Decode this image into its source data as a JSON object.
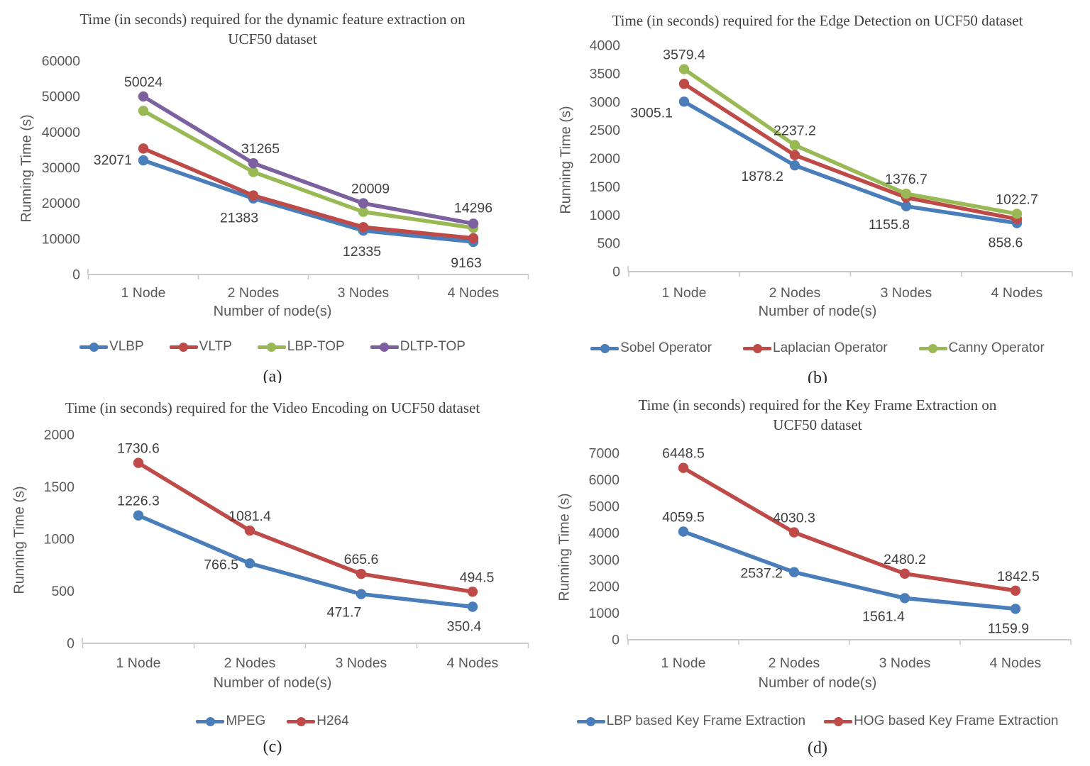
{
  "palette": {
    "blue": "#4A7EBB",
    "red": "#BE4B48",
    "green": "#98B954",
    "purple": "#7D60A0"
  },
  "style_colors": {
    "tick_text": "#595959",
    "data_label_text": "#404040",
    "title_text": "#3F3F3F",
    "axis_line": "#C9C9C9"
  },
  "chart_data": [
    {
      "type": "line",
      "title": "Time (in seconds) required for the dynamic feature extraction on UCF50 dataset",
      "ylabel": "Running Time (s)",
      "xlabel": "Number of node(s)",
      "caption": "(a)",
      "categories": [
        "1 Node",
        "2 Nodes",
        "3 Nodes",
        "4 Nodes"
      ],
      "ylim": [
        0,
        60000
      ],
      "ytick_step": 10000,
      "grid": false,
      "legend_position": "bottom",
      "series": [
        {
          "name": "VLBP",
          "color_key": "blue",
          "values": [
            32071,
            21383,
            12335,
            9163
          ],
          "labels": [
            "32071",
            "21383",
            "12335",
            "9163"
          ],
          "label_offsets": [
            [
              -16,
              0,
              "end"
            ],
            [
              -20,
              28,
              "middle"
            ],
            [
              -2,
              30,
              "middle"
            ],
            [
              -10,
              30,
              "middle"
            ]
          ]
        },
        {
          "name": "VLTP",
          "color_key": "red",
          "values": [
            35400,
            22200,
            13300,
            10200
          ],
          "labels": null,
          "label_offsets": null
        },
        {
          "name": "LBP-TOP",
          "color_key": "green",
          "values": [
            46000,
            28800,
            17600,
            13100
          ],
          "labels": null,
          "label_offsets": null
        },
        {
          "name": "DLTP-TOP",
          "color_key": "purple",
          "values": [
            50024,
            31265,
            20009,
            14296
          ],
          "labels": [
            "50024",
            "31265",
            "20009",
            "14296"
          ],
          "label_offsets": [
            [
              0,
              -20,
              "middle"
            ],
            [
              10,
              -20,
              "middle"
            ],
            [
              10,
              -20,
              "middle"
            ],
            [
              0,
              -22,
              "middle"
            ]
          ]
        }
      ]
    },
    {
      "type": "line",
      "title": "Time (in seconds) required for the Edge Detection on UCF50 dataset",
      "ylabel": "Running Time (s)",
      "xlabel": "Number of node(s)",
      "caption": "(b)",
      "categories": [
        "1 Node",
        "2 Nodes",
        "3 Nodes",
        "4 Nodes"
      ],
      "ylim": [
        0,
        4000
      ],
      "ytick_step": 500,
      "grid": false,
      "legend_position": "bottom",
      "series": [
        {
          "name": "Sobel Operator",
          "color_key": "blue",
          "values": [
            3005.1,
            1878.2,
            1155.8,
            858.6
          ],
          "labels": [
            "3005.1",
            "1878.2",
            "1155.8",
            "858.6"
          ],
          "label_offsets": [
            [
              -16,
              16,
              "end"
            ],
            [
              -16,
              16,
              "end"
            ],
            [
              -24,
              26,
              "middle"
            ],
            [
              -16,
              28,
              "middle"
            ]
          ]
        },
        {
          "name": "Laplacian Operator",
          "color_key": "red",
          "values": [
            3320,
            2060,
            1310,
            930
          ],
          "labels": null,
          "label_offsets": null
        },
        {
          "name": "Canny Operator",
          "color_key": "green",
          "values": [
            3579.4,
            2237.2,
            1376.7,
            1022.7
          ],
          "labels": [
            "3579.4",
            "2237.2",
            "1376.7",
            "1022.7"
          ],
          "label_offsets": [
            [
              0,
              -20,
              "middle"
            ],
            [
              0,
              -20,
              "middle"
            ],
            [
              0,
              -20,
              "middle"
            ],
            [
              0,
              -20,
              "middle"
            ]
          ]
        }
      ]
    },
    {
      "type": "line",
      "title": "Time (in seconds) required for the Video Encoding on UCF50 dataset",
      "ylabel": "Running Time (s)",
      "xlabel": "Number of node(s)",
      "caption": "(c)",
      "categories": [
        "1 Node",
        "2 Nodes",
        "3 Nodes",
        "4 Nodes"
      ],
      "ylim": [
        0,
        2000
      ],
      "ytick_step": 500,
      "grid": false,
      "legend_position": "bottom",
      "series": [
        {
          "name": "MPEG",
          "color_key": "blue",
          "values": [
            1226.3,
            766.5,
            471.7,
            350.4
          ],
          "labels": [
            "1226.3",
            "766.5",
            "471.7",
            "350.4"
          ],
          "label_offsets": [
            [
              0,
              -20,
              "middle"
            ],
            [
              -16,
              2,
              "end"
            ],
            [
              -24,
              26,
              "middle"
            ],
            [
              -12,
              28,
              "middle"
            ]
          ]
        },
        {
          "name": "H264",
          "color_key": "red",
          "values": [
            1730.6,
            1081.4,
            665.6,
            494.5
          ],
          "labels": [
            "1730.6",
            "1081.4",
            "665.6",
            "494.5"
          ],
          "label_offsets": [
            [
              0,
              -20,
              "middle"
            ],
            [
              0,
              -20,
              "middle"
            ],
            [
              0,
              -20,
              "middle"
            ],
            [
              6,
              -20,
              "middle"
            ]
          ]
        }
      ]
    },
    {
      "type": "line",
      "title": "Time (in seconds) required for the Key Frame Extraction on UCF50 dataset",
      "ylabel": "Running Time (s)",
      "xlabel": "Number of node(s)",
      "caption": "(d)",
      "categories": [
        "1 Node",
        "2 Nodes",
        "3 Nodes",
        "4 Nodes"
      ],
      "ylim": [
        0,
        7000
      ],
      "ytick_step": 1000,
      "grid": false,
      "legend_position": "bottom",
      "series": [
        {
          "name": "LBP based Key Frame Extraction",
          "color_key": "blue",
          "values": [
            4059.5,
            2537.2,
            1561.4,
            1159.9
          ],
          "labels": [
            "4059.5",
            "2537.2",
            "1561.4",
            "1159.9"
          ],
          "label_offsets": [
            [
              0,
              -20,
              "middle"
            ],
            [
              -16,
              2,
              "end"
            ],
            [
              -30,
              26,
              "middle"
            ],
            [
              -10,
              28,
              "middle"
            ]
          ]
        },
        {
          "name": "HOG based Key Frame Extraction",
          "color_key": "red",
          "values": [
            6448.5,
            4030.3,
            2480.2,
            1842.5
          ],
          "labels": [
            "6448.5",
            "4030.3",
            "2480.2",
            "1842.5"
          ],
          "label_offsets": [
            [
              0,
              -20,
              "middle"
            ],
            [
              0,
              -20,
              "middle"
            ],
            [
              0,
              -20,
              "middle"
            ],
            [
              4,
              -20,
              "middle"
            ]
          ]
        }
      ]
    }
  ]
}
